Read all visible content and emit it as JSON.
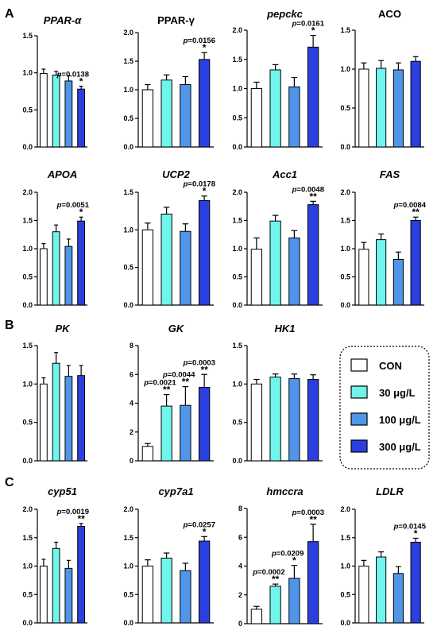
{
  "sections": [
    "A",
    "B",
    "C"
  ],
  "legend": {
    "entries": [
      {
        "label": "CON",
        "color": "#ffffff"
      },
      {
        "label": "30 μg/L",
        "color": "#6ff5ec"
      },
      {
        "label": "100 μg/L",
        "color": "#4f95ea"
      },
      {
        "label": "300 μg/L",
        "color": "#2b3fe0"
      }
    ]
  },
  "colors": {
    "CON": "#ffffff",
    "30": "#6ff5ec",
    "100": "#4f95ea",
    "300": "#2b3fe0"
  },
  "chart_data": [
    {
      "type": "bar",
      "title": "PPAR-α",
      "italic": true,
      "categories": [
        "CON",
        "30 μg/L",
        "100 μg/L",
        "300 μg/L"
      ],
      "values": [
        0.99,
        0.97,
        0.89,
        0.78
      ],
      "errors": [
        0.06,
        0.05,
        0.07,
        0.04
      ],
      "ylim": [
        0,
        1.5
      ],
      "yticks": [
        "0.0",
        "0.5",
        "1.0",
        "1.5"
      ],
      "annotations": [
        {
          "index": 3,
          "pvalue": "=0.0138",
          "stars": "*"
        }
      ]
    },
    {
      "type": "bar",
      "title": "PPAR-γ",
      "italic": false,
      "categories": [
        "CON",
        "30 μg/L",
        "100 μg/L",
        "300 μg/L"
      ],
      "values": [
        1.0,
        1.17,
        1.09,
        1.53
      ],
      "errors": [
        0.09,
        0.09,
        0.14,
        0.12
      ],
      "ylim": [
        0,
        2.0
      ],
      "yticks": [
        "0.0",
        "0.5",
        "1.0",
        "1.5",
        "2.0"
      ],
      "annotations": [
        {
          "index": 3,
          "pvalue": "=0.0156",
          "stars": "*"
        }
      ]
    },
    {
      "type": "bar",
      "title": "pepckc",
      "italic": true,
      "categories": [
        "CON",
        "30 μg/L",
        "100 μg/L",
        "300 μg/L"
      ],
      "values": [
        1.0,
        1.32,
        1.03,
        1.71
      ],
      "errors": [
        0.11,
        0.09,
        0.16,
        0.2
      ],
      "ylim": [
        0,
        2.0
      ],
      "yticks": [
        "0.0",
        "0.5",
        "1.0",
        "1.5",
        "2.0"
      ],
      "annotations": [
        {
          "index": 3,
          "pvalue": "=0.0161",
          "stars": "*"
        }
      ]
    },
    {
      "type": "bar",
      "title": "ACO",
      "italic": false,
      "categories": [
        "CON",
        "30 μg/L",
        "100 μg/L",
        "300 μg/L"
      ],
      "values": [
        1.0,
        1.01,
        0.99,
        1.1
      ],
      "errors": [
        0.08,
        0.1,
        0.09,
        0.06
      ],
      "ylim": [
        0,
        1.5
      ],
      "yticks": [
        "0.0",
        "0.5",
        "1.0",
        "1.5"
      ],
      "annotations": []
    },
    {
      "type": "bar",
      "title": "APOA",
      "italic": true,
      "categories": [
        "CON",
        "30 μg/L",
        "100 μg/L",
        "300 μg/L"
      ],
      "values": [
        1.0,
        1.3,
        1.04,
        1.49
      ],
      "errors": [
        0.09,
        0.12,
        0.13,
        0.07
      ],
      "ylim": [
        0,
        2.0
      ],
      "yticks": [
        "0.0",
        "0.5",
        "1.0",
        "1.5",
        "2.0"
      ],
      "annotations": [
        {
          "index": 3,
          "pvalue": "=0.0051",
          "stars": "*"
        }
      ]
    },
    {
      "type": "bar",
      "title": "UCP2",
      "italic": true,
      "categories": [
        "CON",
        "30 μg/L",
        "100 μg/L",
        "300 μg/L"
      ],
      "values": [
        1.0,
        1.21,
        0.98,
        1.39
      ],
      "errors": [
        0.09,
        0.09,
        0.1,
        0.06
      ],
      "ylim": [
        0,
        1.5
      ],
      "yticks": [
        "0.0",
        "0.5",
        "1.0",
        "1.5"
      ],
      "annotations": [
        {
          "index": 3,
          "pvalue": "=0.0178",
          "stars": "*"
        }
      ]
    },
    {
      "type": "bar",
      "title": "Acc1",
      "italic": true,
      "categories": [
        "CON",
        "30 μg/L",
        "100 μg/L",
        "300 μg/L"
      ],
      "values": [
        0.99,
        1.49,
        1.19,
        1.78
      ],
      "errors": [
        0.2,
        0.1,
        0.13,
        0.06
      ],
      "ylim": [
        0,
        2.0
      ],
      "yticks": [
        "0.0",
        "0.5",
        "1.0",
        "1.5",
        "2.0"
      ],
      "annotations": [
        {
          "index": 3,
          "pvalue": "=0.0048",
          "stars": "**"
        }
      ]
    },
    {
      "type": "bar",
      "title": "FAS",
      "italic": true,
      "categories": [
        "CON",
        "30 μg/L",
        "100 μg/L",
        "300 μg/L"
      ],
      "values": [
        0.99,
        1.16,
        0.81,
        1.5
      ],
      "errors": [
        0.12,
        0.1,
        0.13,
        0.06
      ],
      "ylim": [
        0,
        2.0
      ],
      "yticks": [
        "0.0",
        "0.5",
        "1.0",
        "1.5",
        "2.0"
      ],
      "annotations": [
        {
          "index": 3,
          "pvalue": "=0.0084",
          "stars": "**"
        }
      ]
    },
    {
      "type": "bar",
      "title": "PK",
      "italic": true,
      "categories": [
        "CON",
        "30 μg/L",
        "100 μg/L",
        "300 μg/L"
      ],
      "values": [
        1.0,
        1.27,
        1.1,
        1.11
      ],
      "errors": [
        0.08,
        0.14,
        0.14,
        0.13
      ],
      "ylim": [
        0,
        1.5
      ],
      "yticks": [
        "0.0",
        "0.5",
        "1.0",
        "1.5"
      ],
      "annotations": []
    },
    {
      "type": "bar",
      "title": "GK",
      "italic": true,
      "categories": [
        "CON",
        "30 μg/L",
        "100 μg/L",
        "300 μg/L"
      ],
      "values": [
        1.0,
        3.8,
        3.85,
        5.1
      ],
      "errors": [
        0.2,
        0.8,
        1.3,
        0.9
      ],
      "ylim": [
        0,
        8
      ],
      "yticks": [
        "0",
        "2",
        "4",
        "6",
        "8"
      ],
      "annotations": [
        {
          "index": 1,
          "pvalue": "=0.0021",
          "stars": "**"
        },
        {
          "index": 2,
          "pvalue": "=0.0044",
          "stars": "**"
        },
        {
          "index": 3,
          "pvalue": "=0.0003",
          "stars": "**"
        }
      ]
    },
    {
      "type": "bar",
      "title": "HK1",
      "italic": true,
      "categories": [
        "CON",
        "30 μg/L",
        "100 μg/L",
        "300 μg/L"
      ],
      "values": [
        1.0,
        1.09,
        1.07,
        1.06
      ],
      "errors": [
        0.06,
        0.04,
        0.06,
        0.06
      ],
      "ylim": [
        0,
        1.5
      ],
      "yticks": [
        "0.0",
        "0.5",
        "1.0",
        "1.5"
      ],
      "annotations": []
    },
    {
      "type": "bar",
      "title": "cyp51",
      "italic": true,
      "categories": [
        "CON",
        "30 μg/L",
        "100 μg/L",
        "300 μg/L"
      ],
      "values": [
        1.0,
        1.31,
        0.96,
        1.7
      ],
      "errors": [
        0.12,
        0.11,
        0.14,
        0.05
      ],
      "ylim": [
        0,
        2.0
      ],
      "yticks": [
        "0.0",
        "0.5",
        "1.0",
        "1.5",
        "2.0"
      ],
      "annotations": [
        {
          "index": 3,
          "pvalue": "=0.0019",
          "stars": "**"
        }
      ]
    },
    {
      "type": "bar",
      "title": "cyp7a1",
      "italic": true,
      "categories": [
        "CON",
        "30 μg/L",
        "100 μg/L",
        "300 μg/L"
      ],
      "values": [
        1.0,
        1.14,
        0.92,
        1.44
      ],
      "errors": [
        0.11,
        0.09,
        0.13,
        0.08
      ],
      "ylim": [
        0,
        2.0
      ],
      "yticks": [
        "0.0",
        "0.5",
        "1.0",
        "1.5",
        "2.0"
      ],
      "annotations": [
        {
          "index": 3,
          "pvalue": "=0.0257",
          "stars": "*"
        }
      ]
    },
    {
      "type": "bar",
      "title": "hmccra",
      "italic": true,
      "categories": [
        "CON",
        "30 μg/L",
        "100 μg/L",
        "300 μg/L"
      ],
      "values": [
        1.0,
        2.6,
        3.15,
        5.7
      ],
      "errors": [
        0.2,
        0.15,
        0.9,
        1.2
      ],
      "ylim": [
        0,
        8
      ],
      "yticks": [
        "0",
        "2",
        "4",
        "6",
        "8"
      ],
      "annotations": [
        {
          "index": 1,
          "pvalue": "=0.0002",
          "stars": "**"
        },
        {
          "index": 2,
          "pvalue": "=0.0209",
          "stars": "*"
        },
        {
          "index": 3,
          "pvalue": "=0.0003",
          "stars": "**"
        }
      ]
    },
    {
      "type": "bar",
      "title": "LDLR",
      "italic": true,
      "categories": [
        "CON",
        "30 μg/L",
        "100 μg/L",
        "300 μg/L"
      ],
      "values": [
        1.0,
        1.16,
        0.87,
        1.42
      ],
      "errors": [
        0.1,
        0.09,
        0.12,
        0.07
      ],
      "ylim": [
        0,
        2.0
      ],
      "yticks": [
        "0.0",
        "0.5",
        "1.0",
        "1.5",
        "2.0"
      ],
      "annotations": [
        {
          "index": 3,
          "pvalue": "=0.0145",
          "stars": "*"
        }
      ]
    }
  ]
}
